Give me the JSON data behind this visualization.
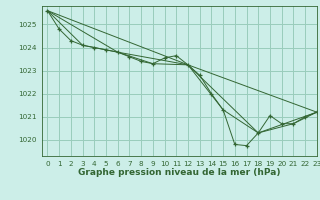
{
  "title": "Graphe pression niveau de la mer (hPa)",
  "bg_color": "#cceee8",
  "grid_color": "#99ccbb",
  "line_color": "#336633",
  "xlim": [
    -0.5,
    23
  ],
  "ylim": [
    1019.3,
    1025.8
  ],
  "yticks": [
    1020,
    1021,
    1022,
    1023,
    1024,
    1025
  ],
  "xticks": [
    0,
    1,
    2,
    3,
    4,
    5,
    6,
    7,
    8,
    9,
    10,
    11,
    12,
    13,
    14,
    15,
    16,
    17,
    18,
    19,
    20,
    21,
    22,
    23
  ],
  "lines": [
    {
      "x": [
        0,
        1,
        2,
        3,
        4,
        5,
        6,
        7,
        8,
        9,
        10,
        11,
        12,
        13,
        14,
        15,
        16,
        17,
        18,
        19,
        20,
        21,
        22,
        23
      ],
      "y": [
        1025.6,
        1024.8,
        1024.3,
        1024.1,
        1024.0,
        1023.9,
        1023.8,
        1023.6,
        1023.4,
        1023.3,
        1023.55,
        1023.65,
        1023.25,
        1022.8,
        1022.0,
        1021.3,
        1019.8,
        1019.75,
        1020.3,
        1021.05,
        1020.7,
        1020.7,
        1021.0,
        1021.2
      ],
      "marker": true
    },
    {
      "x": [
        0,
        3,
        6,
        9,
        12,
        15,
        18,
        21,
        23
      ],
      "y": [
        1025.6,
        1024.1,
        1023.8,
        1023.3,
        1023.25,
        1021.3,
        1020.3,
        1020.7,
        1021.2
      ],
      "marker": false
    },
    {
      "x": [
        0,
        6,
        12,
        18,
        23
      ],
      "y": [
        1025.6,
        1023.8,
        1023.25,
        1020.3,
        1021.2
      ],
      "marker": false
    },
    {
      "x": [
        0,
        12,
        23
      ],
      "y": [
        1025.6,
        1023.25,
        1021.2
      ],
      "marker": false
    }
  ],
  "title_fontsize": 6.5,
  "tick_fontsize": 5.2
}
